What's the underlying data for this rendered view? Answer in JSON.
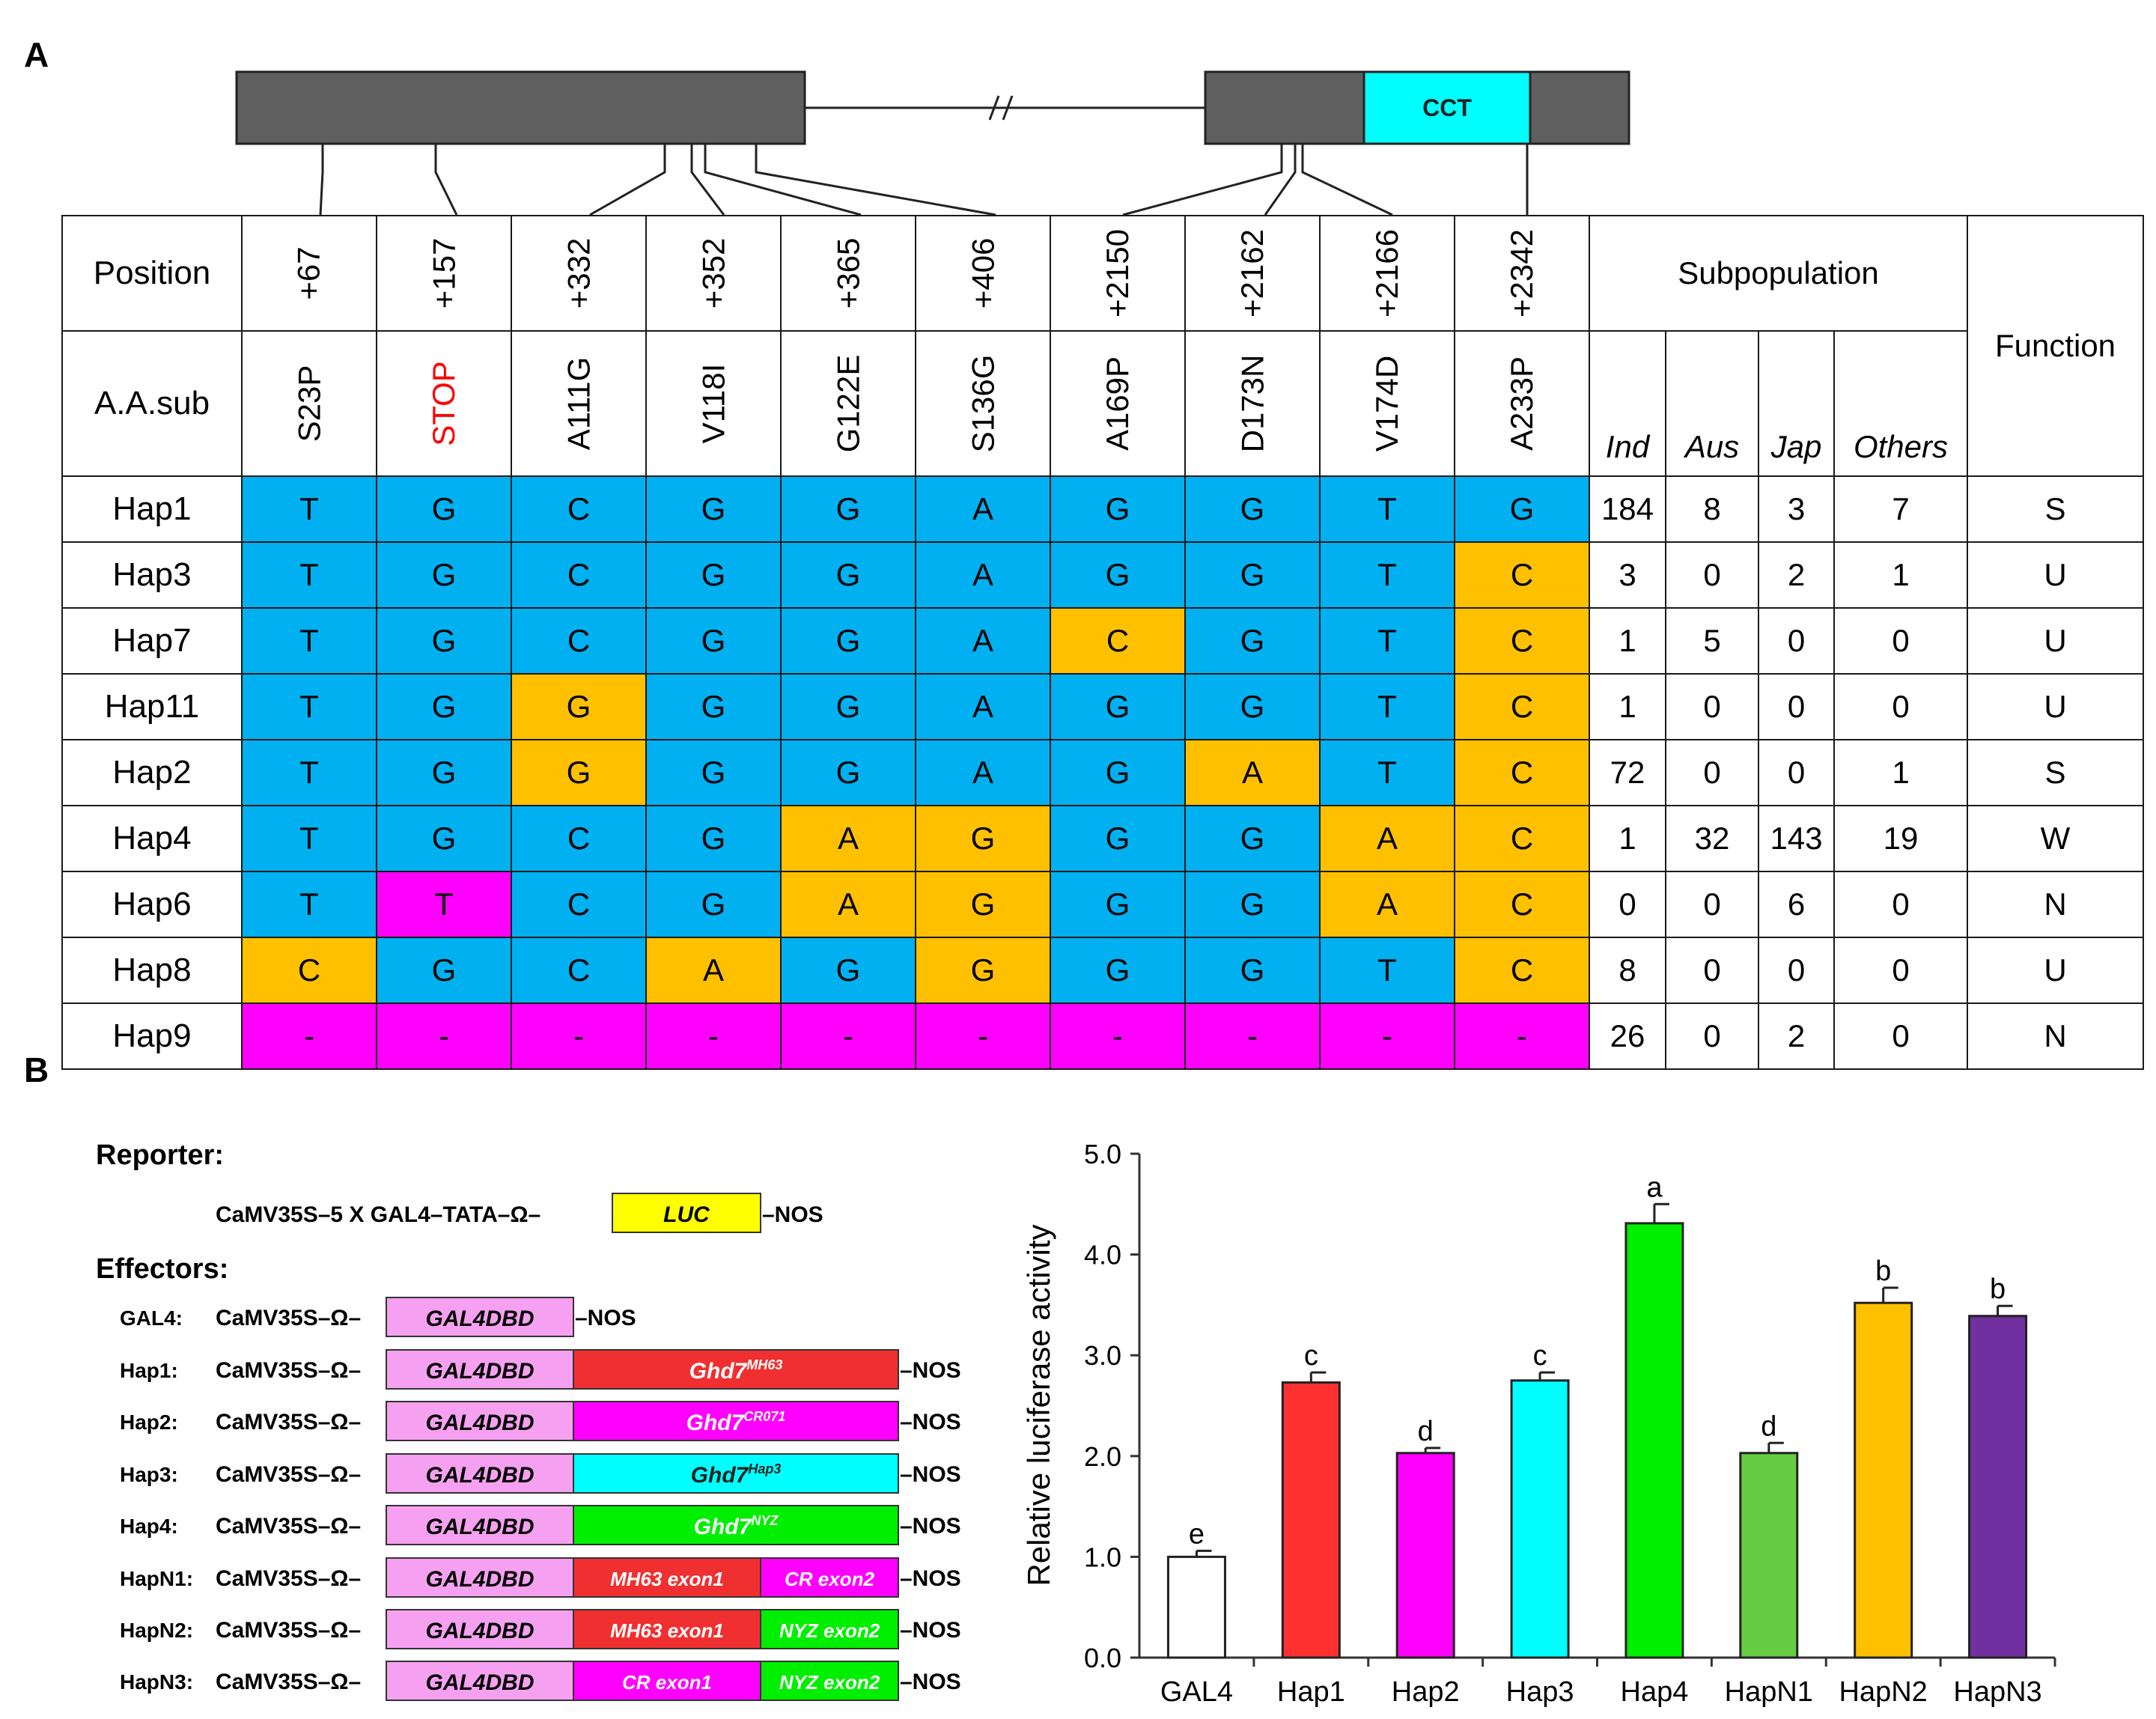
{
  "panelA": {
    "label": "A",
    "gene": {
      "domain": "CCT"
    },
    "table": {
      "position_label": "Position",
      "aa_label": "A.A.sub",
      "positions": [
        "+67",
        "+157",
        "+332",
        "+352",
        "+365",
        "+406",
        "+2150",
        "+2162",
        "+2166",
        "+2342"
      ],
      "substitutions": [
        "S23P",
        "STOP",
        "A111G",
        "V118I",
        "G122E",
        "S136G",
        "A169P",
        "D173N",
        "V174D",
        "A233P"
      ],
      "subpopulation_label": "Subpopulation",
      "subpopulations": [
        "Ind",
        "Aus",
        "Jap",
        "Others"
      ],
      "function_label": "Function",
      "rows": [
        {
          "name": "Hap1",
          "alleles": [
            "T",
            "G",
            "C",
            "G",
            "G",
            "A",
            "G",
            "G",
            "T",
            "G"
          ],
          "colors": [
            "blue",
            "blue",
            "blue",
            "blue",
            "blue",
            "blue",
            "blue",
            "blue",
            "blue",
            "blue"
          ],
          "counts": [
            "184",
            "8",
            "3",
            "7"
          ],
          "function": "S"
        },
        {
          "name": "Hap3",
          "alleles": [
            "T",
            "G",
            "C",
            "G",
            "G",
            "A",
            "G",
            "G",
            "T",
            "C"
          ],
          "colors": [
            "blue",
            "blue",
            "blue",
            "blue",
            "blue",
            "blue",
            "blue",
            "blue",
            "blue",
            "orange"
          ],
          "counts": [
            "3",
            "0",
            "2",
            "1"
          ],
          "function": "U"
        },
        {
          "name": "Hap7",
          "alleles": [
            "T",
            "G",
            "C",
            "G",
            "G",
            "A",
            "C",
            "G",
            "T",
            "C"
          ],
          "colors": [
            "blue",
            "blue",
            "blue",
            "blue",
            "blue",
            "blue",
            "orange",
            "blue",
            "blue",
            "orange"
          ],
          "counts": [
            "1",
            "5",
            "0",
            "0"
          ],
          "function": "U"
        },
        {
          "name": "Hap11",
          "alleles": [
            "T",
            "G",
            "G",
            "G",
            "G",
            "A",
            "G",
            "G",
            "T",
            "C"
          ],
          "colors": [
            "blue",
            "blue",
            "orange",
            "blue",
            "blue",
            "blue",
            "blue",
            "blue",
            "blue",
            "orange"
          ],
          "counts": [
            "1",
            "0",
            "0",
            "0"
          ],
          "function": "U"
        },
        {
          "name": "Hap2",
          "alleles": [
            "T",
            "G",
            "G",
            "G",
            "G",
            "A",
            "G",
            "A",
            "T",
            "C"
          ],
          "colors": [
            "blue",
            "blue",
            "orange",
            "blue",
            "blue",
            "blue",
            "blue",
            "orange",
            "blue",
            "orange"
          ],
          "counts": [
            "72",
            "0",
            "0",
            "1"
          ],
          "function": "S"
        },
        {
          "name": "Hap4",
          "alleles": [
            "T",
            "G",
            "C",
            "G",
            "A",
            "G",
            "G",
            "G",
            "A",
            "C"
          ],
          "colors": [
            "blue",
            "blue",
            "blue",
            "blue",
            "orange",
            "orange",
            "blue",
            "blue",
            "orange",
            "orange"
          ],
          "counts": [
            "1",
            "32",
            "143",
            "19"
          ],
          "function": "W"
        },
        {
          "name": "Hap6",
          "alleles": [
            "T",
            "T",
            "C",
            "G",
            "A",
            "G",
            "G",
            "G",
            "A",
            "C"
          ],
          "colors": [
            "blue",
            "mag",
            "blue",
            "blue",
            "orange",
            "orange",
            "blue",
            "blue",
            "orange",
            "orange"
          ],
          "counts": [
            "0",
            "0",
            "6",
            "0"
          ],
          "function": "N"
        },
        {
          "name": "Hap8",
          "alleles": [
            "C",
            "G",
            "C",
            "A",
            "G",
            "G",
            "G",
            "G",
            "T",
            "C"
          ],
          "colors": [
            "orange",
            "blue",
            "blue",
            "orange",
            "blue",
            "orange",
            "blue",
            "blue",
            "blue",
            "orange"
          ],
          "counts": [
            "8",
            "0",
            "0",
            "0"
          ],
          "function": "U"
        },
        {
          "name": "Hap9",
          "alleles": [
            "-",
            "-",
            "-",
            "-",
            "-",
            "-",
            "-",
            "-",
            "-",
            "-"
          ],
          "colors": [
            "mag",
            "mag",
            "mag",
            "mag",
            "mag",
            "mag",
            "mag",
            "mag",
            "mag",
            "mag"
          ],
          "counts": [
            "26",
            "0",
            "2",
            "0"
          ],
          "function": "N"
        }
      ]
    }
  },
  "panelB": {
    "label": "B",
    "reporter_title": "Reporter:",
    "reporter": {
      "promoter": "CaMV35S",
      "gal4": "5 X GAL4",
      "tata": "TATA",
      "omega": "Ω",
      "gene": "LUC",
      "terminator": "NOS"
    },
    "effectors_title": "Effectors:",
    "effectors": [
      {
        "label": "GAL4:",
        "promoter": "CaMV35S",
        "omega": "Ω",
        "dbd": "GAL4DBD",
        "parts": [],
        "terminator": "NOS"
      },
      {
        "label": "Hap1:",
        "promoter": "CaMV35S",
        "omega": "Ω",
        "dbd": "GAL4DBD",
        "parts": [
          {
            "text": "Ghd7",
            "sup": "MH63",
            "color": "#f03030"
          }
        ],
        "terminator": "NOS"
      },
      {
        "label": "Hap2:",
        "promoter": "CaMV35S",
        "omega": "Ω",
        "dbd": "GAL4DBD",
        "parts": [
          {
            "text": "Ghd7",
            "sup": "CR071",
            "color": "#ff00ff"
          }
        ],
        "terminator": "NOS"
      },
      {
        "label": "Hap3:",
        "promoter": "CaMV35S",
        "omega": "Ω",
        "dbd": "GAL4DBD",
        "parts": [
          {
            "text": "Ghd7",
            "sup": "Hap3",
            "color": "#00ffff"
          }
        ],
        "terminator": "NOS"
      },
      {
        "label": "Hap4:",
        "promoter": "CaMV35S",
        "omega": "Ω",
        "dbd": "GAL4DBD",
        "parts": [
          {
            "text": "Ghd7",
            "sup": "NYZ",
            "color": "#00ee00"
          }
        ],
        "terminator": "NOS"
      },
      {
        "label": "HapN1:",
        "promoter": "CaMV35S",
        "omega": "Ω",
        "dbd": "GAL4DBD",
        "parts": [
          {
            "text": "MH63 exon1",
            "sup": "",
            "color": "#f03030"
          },
          {
            "text": "CR exon2",
            "sup": "",
            "color": "#ff00ff"
          }
        ],
        "terminator": "NOS"
      },
      {
        "label": "HapN2:",
        "promoter": "CaMV35S",
        "omega": "Ω",
        "dbd": "GAL4DBD",
        "parts": [
          {
            "text": "MH63 exon1",
            "sup": "",
            "color": "#f03030"
          },
          {
            "text": "NYZ exon2",
            "sup": "",
            "color": "#00ee00"
          }
        ],
        "terminator": "NOS"
      },
      {
        "label": "HapN3:",
        "promoter": "CaMV35S",
        "omega": "Ω",
        "dbd": "GAL4DBD",
        "parts": [
          {
            "text": "CR exon1",
            "sup": "",
            "color": "#ff00ff"
          },
          {
            "text": "NYZ exon2",
            "sup": "",
            "color": "#00ee00"
          }
        ],
        "terminator": "NOS"
      }
    ]
  },
  "chart_data": {
    "type": "bar",
    "title": "",
    "xlabel": "",
    "ylabel": "Relative luciferase activity",
    "ylim": [
      0,
      5
    ],
    "yticks": [
      "0.0",
      "1.0",
      "2.0",
      "3.0",
      "4.0",
      "5.0"
    ],
    "categories": [
      "GAL4",
      "Hap1",
      "Hap2",
      "Hap3",
      "Hap4",
      "HapN1",
      "HapN2",
      "HapN3"
    ],
    "values": [
      1.0,
      2.73,
      2.03,
      2.75,
      4.31,
      2.03,
      3.52,
      3.39
    ],
    "errors": [
      0.06,
      0.1,
      0.05,
      0.08,
      0.19,
      0.1,
      0.15,
      0.1
    ],
    "letters": [
      "e",
      "c",
      "d",
      "c",
      "a",
      "d",
      "b",
      "b"
    ],
    "colors": [
      "#ffffff",
      "#ff3030",
      "#ff00ff",
      "#00ffff",
      "#00ee00",
      "#66cc44",
      "#ffc000",
      "#7030a0"
    ]
  }
}
